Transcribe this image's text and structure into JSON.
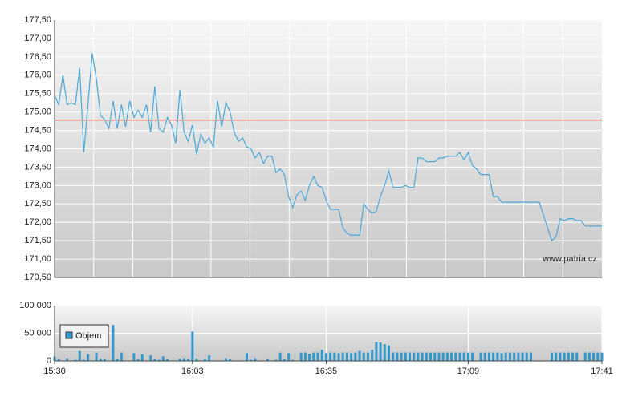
{
  "chart_data": [
    {
      "type": "line",
      "reference_line": 174.78,
      "reference_color": "#e03a2f",
      "color": "#4aa8d8",
      "annotation": "www.patria.cz",
      "xlim": [
        "15:30",
        "17:41"
      ],
      "ylim": [
        170.5,
        177.5
      ],
      "yticks": [
        {
          "value": 170.5,
          "label": "170,50"
        },
        {
          "value": 171,
          "label": "171,00"
        },
        {
          "value": 171.5,
          "label": "171,50"
        },
        {
          "value": 172,
          "label": "172,00"
        },
        {
          "value": 172.5,
          "label": "172,50"
        },
        {
          "value": 173,
          "label": "173,00"
        },
        {
          "value": 173.5,
          "label": "173,50"
        },
        {
          "value": 174,
          "label": "174,00"
        },
        {
          "value": 174.5,
          "label": "174,50"
        },
        {
          "value": 175,
          "label": "175,00"
        },
        {
          "value": 175.5,
          "label": "175,50"
        },
        {
          "value": 176,
          "label": "176,00"
        },
        {
          "value": 176.5,
          "label": "176,50"
        },
        {
          "value": 177,
          "label": "177,00"
        },
        {
          "value": 177.5,
          "label": "177,50"
        }
      ],
      "x": [
        "15:30",
        "15:31",
        "15:32",
        "15:33",
        "15:34",
        "15:35",
        "15:36",
        "15:37",
        "15:38",
        "15:39",
        "15:40",
        "15:41",
        "15:42",
        "15:43",
        "15:44",
        "15:45",
        "15:46",
        "15:47",
        "15:48",
        "15:49",
        "15:50",
        "15:51",
        "15:52",
        "15:53",
        "15:54",
        "15:55",
        "15:56",
        "15:57",
        "15:58",
        "15:59",
        "16:00",
        "16:01",
        "16:02",
        "16:03",
        "16:04",
        "16:05",
        "16:06",
        "16:07",
        "16:08",
        "16:09",
        "16:10",
        "16:11",
        "16:12",
        "16:13",
        "16:14",
        "16:15",
        "16:16",
        "16:17",
        "16:18",
        "16:19",
        "16:20",
        "16:21",
        "16:22",
        "16:23",
        "16:24",
        "16:25",
        "16:26",
        "16:27",
        "16:28",
        "16:29",
        "16:30",
        "16:31",
        "16:32",
        "16:33",
        "16:34",
        "16:35",
        "16:36",
        "16:37",
        "16:38",
        "16:39",
        "16:40",
        "16:41",
        "16:42",
        "16:43",
        "16:44",
        "16:45",
        "16:46",
        "16:47",
        "16:48",
        "16:49",
        "16:50",
        "16:51",
        "16:52",
        "16:53",
        "16:54",
        "16:55",
        "16:56",
        "16:57",
        "16:58",
        "16:59",
        "17:00",
        "17:01",
        "17:02",
        "17:03",
        "17:04",
        "17:05",
        "17:06",
        "17:07",
        "17:08",
        "17:09",
        "17:10",
        "17:11",
        "17:12",
        "17:13",
        "17:14",
        "17:15",
        "17:16",
        "17:17",
        "17:18",
        "17:19",
        "17:20",
        "17:21",
        "17:22",
        "17:23",
        "17:24",
        "17:25",
        "17:26",
        "17:27",
        "17:28",
        "17:29",
        "17:30",
        "17:31",
        "17:32",
        "17:33",
        "17:34",
        "17:35",
        "17:36",
        "17:37",
        "17:38",
        "17:39",
        "17:40",
        "17:41"
      ],
      "values": [
        175.45,
        175.2,
        176.0,
        175.2,
        175.25,
        175.2,
        176.2,
        173.9,
        175.2,
        176.6,
        175.9,
        174.9,
        174.8,
        174.55,
        175.3,
        174.55,
        175.2,
        174.6,
        175.3,
        174.85,
        175.05,
        174.85,
        175.2,
        174.45,
        175.7,
        174.55,
        174.45,
        174.85,
        174.65,
        174.15,
        175.6,
        174.45,
        174.2,
        174.65,
        173.85,
        174.4,
        174.15,
        174.3,
        174.05,
        175.3,
        174.6,
        175.25,
        175.0,
        174.45,
        174.2,
        174.3,
        174.05,
        174.0,
        173.75,
        173.9,
        173.6,
        173.8,
        173.8,
        173.35,
        173.45,
        173.3,
        172.7,
        172.4,
        172.75,
        172.85,
        172.6,
        173.0,
        173.25,
        173.0,
        172.95,
        172.6,
        172.35,
        172.35,
        172.35,
        171.85,
        171.7,
        171.65,
        171.65,
        171.65,
        172.5,
        172.35,
        172.25,
        172.3,
        172.7,
        173.0,
        173.4,
        172.95,
        172.95,
        172.95,
        173.0,
        172.95,
        172.95,
        173.75,
        173.75,
        173.65,
        173.65,
        173.65,
        173.75,
        173.75,
        173.8,
        173.8,
        173.8,
        173.9,
        173.7,
        173.9,
        173.55,
        173.45,
        173.3,
        173.3,
        173.3,
        172.7,
        172.7,
        172.55,
        172.55,
        172.55,
        172.55,
        172.55,
        172.55,
        172.55,
        172.55,
        172.55,
        172.55,
        172.2,
        171.85,
        171.5,
        171.6,
        172.1,
        172.05,
        172.1,
        172.1,
        172.05,
        172.05,
        171.9,
        171.9,
        171.9,
        171.9,
        171.9
      ]
    },
    {
      "type": "bar",
      "color": "#3399cc",
      "legend": "Objem",
      "xlim": [
        "15:30",
        "17:41"
      ],
      "xticks": [
        "15:30",
        "16:03",
        "16:35",
        "17:09",
        "17:41"
      ],
      "ylim": [
        0,
        100000
      ],
      "yticks": [
        0,
        {
          "value": 50000,
          "label": "50 000"
        },
        {
          "value": 100000,
          "label": "100 000"
        }
      ],
      "x": [
        "15:30",
        "15:31",
        "15:32",
        "15:33",
        "15:34",
        "15:35",
        "15:36",
        "15:37",
        "15:38",
        "15:39",
        "15:40",
        "15:41",
        "15:42",
        "15:43",
        "15:44",
        "15:45",
        "15:46",
        "15:47",
        "15:48",
        "15:49",
        "15:50",
        "15:51",
        "15:52",
        "15:53",
        "15:54",
        "15:55",
        "15:56",
        "15:57",
        "15:58",
        "15:59",
        "16:00",
        "16:01",
        "16:02",
        "16:03",
        "16:04",
        "16:05",
        "16:06",
        "16:07",
        "16:08",
        "16:09",
        "16:10",
        "16:11",
        "16:12",
        "16:13",
        "16:14",
        "16:15",
        "16:16",
        "16:17",
        "16:18",
        "16:19",
        "16:20",
        "16:21",
        "16:22",
        "16:23",
        "16:24",
        "16:25",
        "16:26",
        "16:27",
        "16:28",
        "16:29",
        "16:30",
        "16:31",
        "16:32",
        "16:33",
        "16:34",
        "16:35",
        "16:36",
        "16:37",
        "16:38",
        "16:39",
        "16:40",
        "16:41",
        "16:42",
        "16:43",
        "16:44",
        "16:45",
        "16:46",
        "16:47",
        "16:48",
        "16:49",
        "16:50",
        "16:51",
        "16:52",
        "16:53",
        "16:54",
        "16:55",
        "16:56",
        "16:57",
        "16:58",
        "16:59",
        "17:00",
        "17:01",
        "17:02",
        "17:03",
        "17:04",
        "17:05",
        "17:06",
        "17:07",
        "17:08",
        "17:09",
        "17:10",
        "17:11",
        "17:12",
        "17:13",
        "17:14",
        "17:15",
        "17:16",
        "17:17",
        "17:18",
        "17:19",
        "17:20",
        "17:21",
        "17:22",
        "17:23",
        "17:24",
        "17:25",
        "17:26",
        "17:27",
        "17:28",
        "17:29",
        "17:30",
        "17:31",
        "17:32",
        "17:33",
        "17:34",
        "17:35",
        "17:36",
        "17:37",
        "17:38",
        "17:39",
        "17:40",
        "17:41"
      ],
      "values": [
        8000,
        3000,
        0,
        5000,
        0,
        2000,
        18000,
        2000,
        12000,
        0,
        15000,
        4000,
        3000,
        0,
        65000,
        3000,
        15000,
        0,
        0,
        14000,
        3000,
        12000,
        0,
        10000,
        3000,
        2000,
        8000,
        3000,
        0,
        0,
        4000,
        5000,
        3000,
        53000,
        4000,
        0,
        3000,
        10000,
        0,
        0,
        0,
        5000,
        3000,
        0,
        0,
        0,
        14000,
        2000,
        5000,
        0,
        0,
        3000,
        0,
        2000,
        15000,
        3000,
        14000,
        2000,
        0,
        15000,
        15000,
        13000,
        15000,
        15000,
        20000,
        14000,
        15000,
        15000,
        14000,
        15000,
        15000,
        14000,
        15000,
        18000,
        15000,
        15000,
        20000,
        34000,
        33000,
        30000,
        28000,
        15000,
        15000,
        15000,
        15000,
        15000,
        15000,
        15000,
        15000,
        15000,
        15000,
        15000,
        15000,
        15000,
        15000,
        15000,
        15000,
        15000,
        15000,
        15000,
        15000,
        0,
        15000,
        15000,
        15000,
        15000,
        15000,
        14000,
        15000,
        15000,
        15000,
        15000,
        15000,
        15000,
        15000,
        0,
        0,
        0,
        0,
        15000,
        15000,
        15000,
        15000,
        15000,
        15000,
        15000,
        0,
        15000,
        15000,
        15000,
        15000,
        15000
      ]
    }
  ]
}
